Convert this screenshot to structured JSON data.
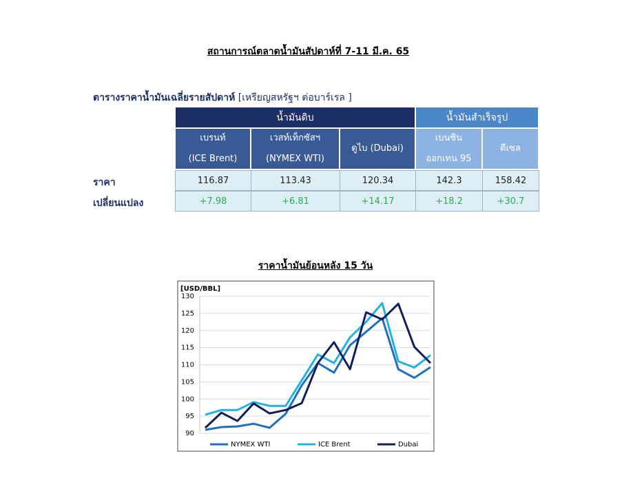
{
  "title": "สถานการณ์ตลาดน้ำมันสัปดาห์ที่ 7-11 มี.ค. 65",
  "table": {
    "caption": "ตารางราคาน้ำมันเฉลี่ยรายสัปดาห์",
    "unit": "[เหรียญสหรัฐฯ ต่อบาร์เรล ]",
    "groups": [
      "น้ำมันดิบ",
      "น้ำมันสำเร็จรูป"
    ],
    "columns": [
      [
        "เบรนท์",
        "(ICE Brent)"
      ],
      [
        "เวสท์เท็กซัสฯ",
        "(NYMEX WTI)"
      ],
      [
        "ดูไบ (Dubai)"
      ],
      [
        "เบนซิน",
        "ออกเทน 95"
      ],
      [
        "ดีเซล"
      ]
    ],
    "row_labels": [
      "ราคา",
      "เปลี่ยนแปลง"
    ],
    "rows": [
      [
        "116.87",
        "113.43",
        "120.34",
        "142.3",
        "158.42"
      ],
      [
        "+7.98",
        "+6.81",
        "+14.17",
        "+18.2",
        "+30.7"
      ]
    ]
  },
  "chart_title": "ราคาน้ำมันย้อนหลัง 15 วัน",
  "chart_data": {
    "type": "line",
    "y_label": "[USD/BBL]",
    "categories": [
      null,
      null,
      null,
      null,
      null,
      null,
      null,
      null,
      null,
      null,
      null,
      null,
      null,
      null,
      null
    ],
    "series": [
      {
        "name": "NYMEX WTI",
        "color": "#1f6fbf",
        "values": [
          91,
          91.8,
          92,
          92.8,
          91.6,
          95.7,
          104,
          110.5,
          107.7,
          115.7,
          119.6,
          123.6,
          108.7,
          106.2,
          109.3
        ]
      },
      {
        "name": "ICE Brent",
        "color": "#22b1e0",
        "values": [
          95.4,
          96.8,
          96.8,
          99.1,
          98,
          98,
          105.5,
          113,
          110.5,
          118,
          122.5,
          128,
          111,
          109.2,
          112.8
        ]
      },
      {
        "name": "Dubai",
        "color": "#0f1f5c",
        "values": [
          91.6,
          96,
          93.6,
          98.7,
          95.8,
          96.8,
          98.8,
          110.5,
          116.6,
          108.7,
          125.3,
          123.2,
          127.8,
          115.2,
          110.5
        ]
      }
    ],
    "ylim": [
      90,
      130
    ],
    "yticks": [
      90,
      95,
      100,
      105,
      110,
      115,
      120,
      125,
      130
    ],
    "grid": true,
    "legend": "bottom"
  }
}
